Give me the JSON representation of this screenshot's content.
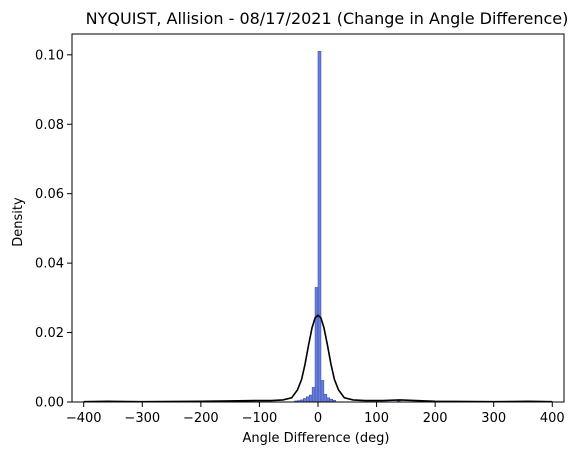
{
  "chart_data": {
    "type": "bar",
    "title": "NYQUIST, Allision - 08/17/2021 (Change in Angle Difference)",
    "xlabel": "Angle Difference (deg)",
    "ylabel": "Density",
    "xlim": [
      -420,
      420
    ],
    "ylim": [
      0,
      0.106
    ],
    "xticks": [
      -400,
      -300,
      -200,
      -100,
      0,
      100,
      200,
      300,
      400
    ],
    "yticks": [
      0.0,
      0.02,
      0.04,
      0.06,
      0.08,
      0.1
    ],
    "xtick_labels": [
      "−400",
      "−300",
      "−200",
      "−100",
      "0",
      "100",
      "200",
      "300",
      "400"
    ],
    "ytick_labels": [
      "0.00",
      "0.02",
      "0.04",
      "0.06",
      "0.08",
      "0.10"
    ],
    "bin_width": 5,
    "bins": [
      {
        "x0": -360,
        "value": 0.0003
      },
      {
        "x0": -160,
        "value": 0.0003
      },
      {
        "x0": -115,
        "value": 0.0004
      },
      {
        "x0": -40,
        "value": 0.0003
      },
      {
        "x0": -35,
        "value": 0.0004
      },
      {
        "x0": -30,
        "value": 0.0006
      },
      {
        "x0": -25,
        "value": 0.001
      },
      {
        "x0": -20,
        "value": 0.0015
      },
      {
        "x0": -15,
        "value": 0.002
      },
      {
        "x0": -10,
        "value": 0.0042
      },
      {
        "x0": -5,
        "value": 0.033
      },
      {
        "x0": 0,
        "value": 0.101
      },
      {
        "x0": 5,
        "value": 0.0062
      },
      {
        "x0": 10,
        "value": 0.0022
      },
      {
        "x0": 15,
        "value": 0.0012
      },
      {
        "x0": 20,
        "value": 0.0008
      },
      {
        "x0": 25,
        "value": 0.0005
      },
      {
        "x0": 135,
        "value": 0.0006
      },
      {
        "x0": 355,
        "value": 0.0003
      }
    ],
    "kde": {
      "x": [
        -400,
        -360,
        -300,
        -200,
        -150,
        -110,
        -80,
        -60,
        -45,
        -35,
        -28,
        -22,
        -16,
        -10,
        -5,
        0,
        5,
        10,
        16,
        22,
        28,
        35,
        45,
        60,
        80,
        110,
        140,
        200,
        300,
        360,
        400
      ],
      "y": [
        0.0001,
        0.0002,
        0.0001,
        0.0002,
        0.0003,
        0.0004,
        0.0004,
        0.0006,
        0.0012,
        0.0035,
        0.0065,
        0.011,
        0.0165,
        0.0215,
        0.0242,
        0.025,
        0.0242,
        0.0215,
        0.0165,
        0.011,
        0.0065,
        0.0035,
        0.0012,
        0.0006,
        0.0004,
        0.0004,
        0.0006,
        0.0002,
        0.0001,
        0.0002,
        0.0001
      ]
    },
    "colors": {
      "bar_fill": "#6a7fd8",
      "bar_edge": "#3a4fb0",
      "kde_line": "#000000"
    },
    "grid": false,
    "legend": "none"
  }
}
